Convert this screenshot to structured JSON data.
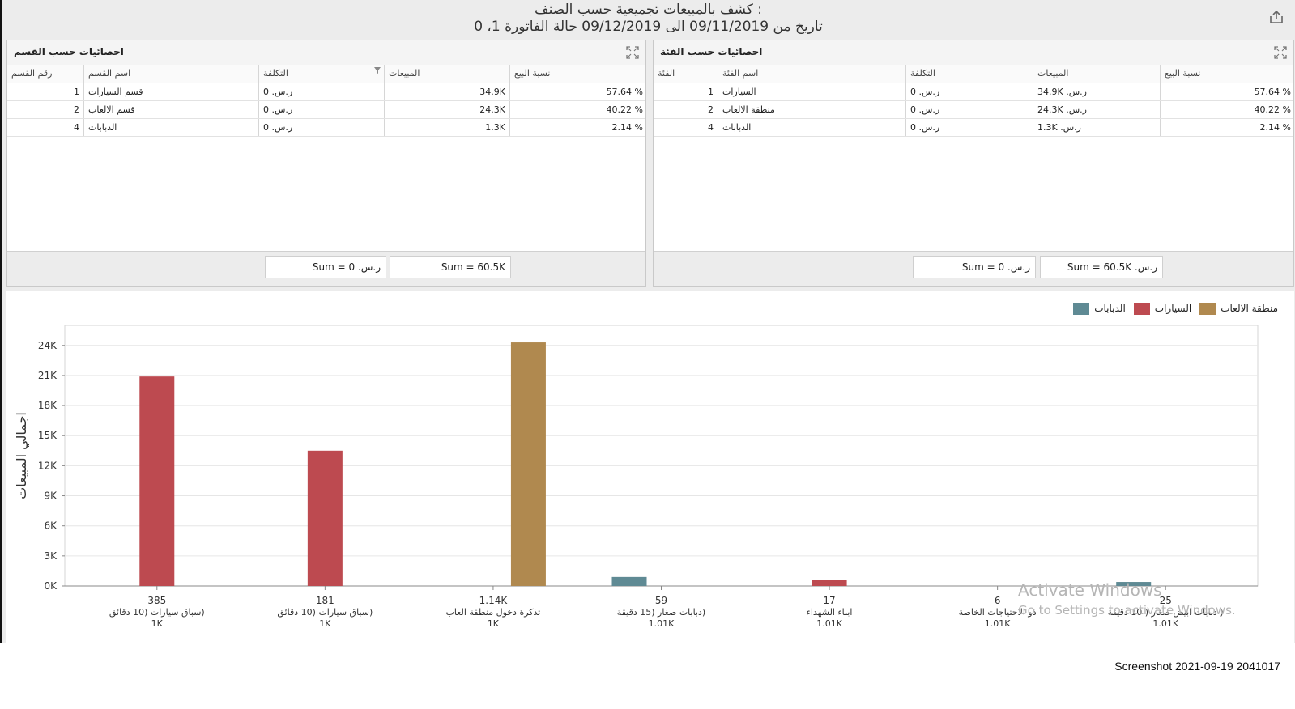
{
  "header": {
    "title": ": كشف بالمبيعات تجميعية حسب الصنف",
    "subtitle": "تاريخ من 09/11/2019 الى 09/12/2019 حالة الفاتورة 1، 0"
  },
  "panels": {
    "left": {
      "title": "احصائيات حسب القسم",
      "columns": [
        "رقم القسم",
        "اسم القسم",
        "التكلفة",
        "المبيعات",
        "نسبة البيع"
      ],
      "rows": [
        {
          "id": "1",
          "name": "قسم السيارات",
          "cost": "ر.س. 0",
          "sales": "34.9K",
          "pct": "57.64 %"
        },
        {
          "id": "2",
          "name": "قسم الالعاب",
          "cost": "ر.س. 0",
          "sales": "24.3K",
          "pct": "40.22 %"
        },
        {
          "id": "4",
          "name": "الدبابات",
          "cost": "ر.س. 0",
          "sales": "1.3K",
          "pct": "2.14 %"
        }
      ],
      "sum_cost": "Sum = 0 .ر.س",
      "sum_sales": "Sum = 60.5K"
    },
    "right": {
      "title": "احصائيات حسب الفئة",
      "columns": [
        "الفئة",
        "اسم الفئة",
        "التكلفة",
        "المبيعات",
        "نسبة البيع"
      ],
      "rows": [
        {
          "id": "1",
          "name": "السيارات",
          "cost": "ر.س. 0",
          "sales": "ر.س. 34.9K",
          "pct": "57.64 %"
        },
        {
          "id": "2",
          "name": "منطقة الالعاب",
          "cost": "ر.س. 0",
          "sales": "ر.س. 24.3K",
          "pct": "40.22 %"
        },
        {
          "id": "4",
          "name": "الدبابات",
          "cost": "ر.س. 0",
          "sales": "ر.س. 1.3K",
          "pct": "2.14 %"
        }
      ],
      "sum_cost": "Sum = 0 .ر.س",
      "sum_sales": "Sum = 60.5K .ر.س"
    }
  },
  "chart_data": {
    "type": "bar",
    "ylabel": "اجمالي المبيعات",
    "ylim": [
      0,
      26000
    ],
    "yticks": [
      "0K",
      "3K",
      "6K",
      "9K",
      "12K",
      "15K",
      "18K",
      "21K",
      "24K"
    ],
    "yticks_values": [
      0,
      3000,
      6000,
      9000,
      12000,
      15000,
      18000,
      21000,
      24000
    ],
    "categories": [
      {
        "line1": "385",
        "line2": "(سباق سيارات (10 دقائق",
        "line3": "1K"
      },
      {
        "line1": "181",
        "line2": "(سباق سيارات (10 دقائق",
        "line3": "1K"
      },
      {
        "line1": "1.14K",
        "line2": "تذكرة دخول منطقة العاب",
        "line3": "1K"
      },
      {
        "line1": "59",
        "line2": "(دبابات صغار (15 دقيقة",
        "line3": "1.01K"
      },
      {
        "line1": "17",
        "line2": "ابناء الشهداء",
        "line3": "1.01K"
      },
      {
        "line1": "6",
        "line2": "ذو الاحتياجات الخاصة",
        "line3": "1.01K"
      },
      {
        "line1": "25",
        "line2": "( دبابات ابيض صغار ( 10 دقيقة",
        "line3": "1.01K"
      }
    ],
    "series": [
      {
        "name": "منطقة الالعاب",
        "color": "#b0894f",
        "values": [
          0,
          0,
          24300,
          0,
          0,
          0,
          0
        ]
      },
      {
        "name": "السيارات",
        "color": "#bd4a50",
        "values": [
          20900,
          13500,
          0,
          0,
          600,
          0,
          0
        ]
      },
      {
        "name": "الدبابات",
        "color": "#5f8a94",
        "values": [
          0,
          0,
          0,
          900,
          0,
          0,
          400
        ]
      }
    ],
    "grid": true,
    "legend_position": "top-right"
  },
  "watermark": {
    "line1": "Activate Windows",
    "line2": "Go to Settings to activate Windows."
  },
  "caption": "Screenshot 2021-09-19 2041017"
}
